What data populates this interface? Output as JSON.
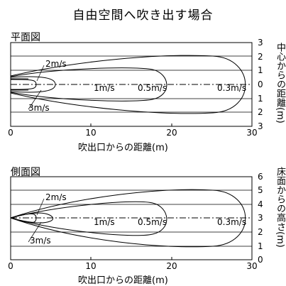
{
  "title": "自由空間へ吹き出す場合",
  "x_axis_label": "吹出口からの距離(m)",
  "x_ticks": [
    "0",
    "10",
    "20",
    "30"
  ],
  "curve_labels": [
    "2m/s",
    "3m/s",
    "1m/s",
    "0.5m/s",
    "0.3m/s"
  ],
  "top_panel": {
    "label": "平面図",
    "y_axis_label": "中心からの距離(m)",
    "y_ticks": [
      "3",
      "2",
      "1",
      "0",
      "1",
      "2",
      "3"
    ]
  },
  "bottom_panel": {
    "label": "側面図",
    "y_axis_label": "床面からの高さ(m)",
    "y_ticks": [
      "6",
      "5",
      "4",
      "3",
      "2",
      "1",
      "0"
    ]
  },
  "colors": {
    "line": "#000000",
    "grid": "#000000",
    "background": "#ffffff"
  }
}
